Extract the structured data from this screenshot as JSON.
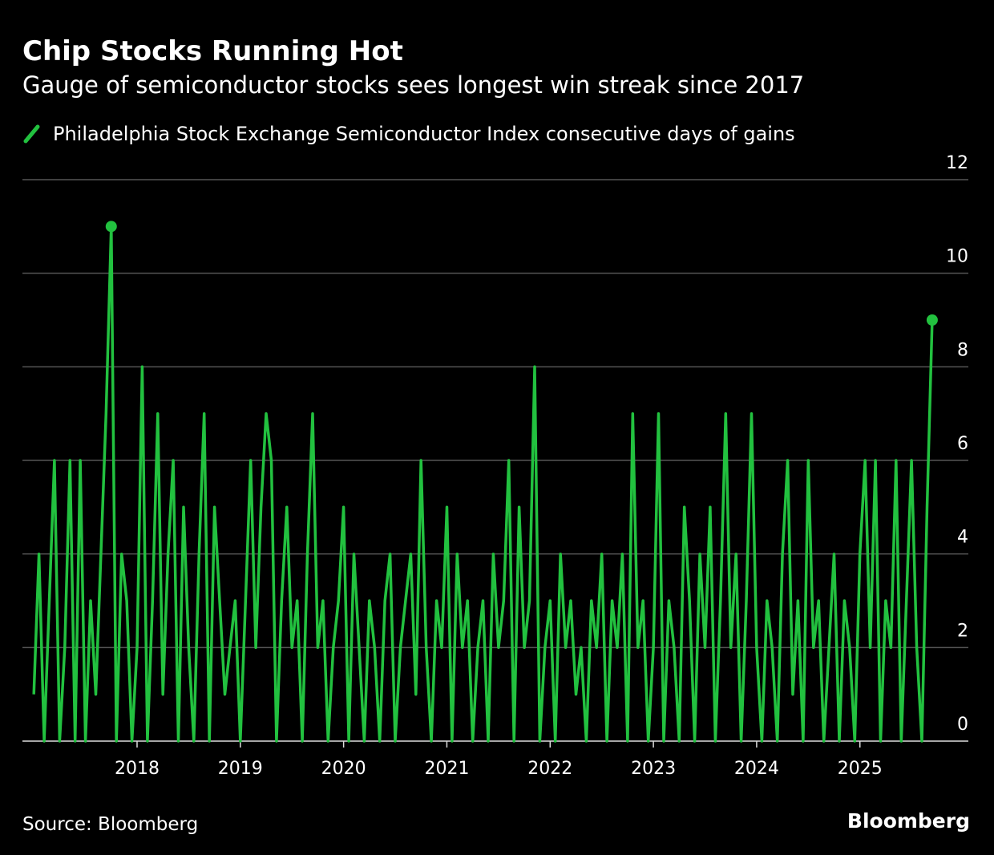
{
  "chart_data": {
    "type": "line",
    "title": "Chip Stocks Running Hot",
    "subtitle": "Gauge of semiconductor stocks sees longest win streak since 2017",
    "source": "Source: Bloomberg",
    "brand": "Bloomberg",
    "x": [
      2017.0,
      2017.05,
      2017.1,
      2017.15,
      2017.2,
      2017.25,
      2017.3,
      2017.35,
      2017.4,
      2017.45,
      2017.5,
      2017.55,
      2017.6,
      2017.65,
      2017.7,
      2017.75,
      2017.8,
      2017.85,
      2017.9,
      2017.95,
      2018.0,
      2018.05,
      2018.1,
      2018.15,
      2018.2,
      2018.25,
      2018.3,
      2018.35,
      2018.4,
      2018.45,
      2018.5,
      2018.55,
      2018.6,
      2018.65,
      2018.7,
      2018.75,
      2018.8,
      2018.85,
      2018.9,
      2018.95,
      2019.0,
      2019.05,
      2019.1,
      2019.15,
      2019.2,
      2019.25,
      2019.3,
      2019.35,
      2019.4,
      2019.45,
      2019.5,
      2019.55,
      2019.6,
      2019.65,
      2019.7,
      2019.75,
      2019.8,
      2019.85,
      2019.9,
      2019.95,
      2020.0,
      2020.05,
      2020.1,
      2020.15,
      2020.2,
      2020.25,
      2020.3,
      2020.35,
      2020.4,
      2020.45,
      2020.5,
      2020.55,
      2020.6,
      2020.65,
      2020.7,
      2020.75,
      2020.8,
      2020.85,
      2020.9,
      2020.95,
      2021.0,
      2021.05,
      2021.1,
      2021.15,
      2021.2,
      2021.25,
      2021.3,
      2021.35,
      2021.4,
      2021.45,
      2021.5,
      2021.55,
      2021.6,
      2021.65,
      2021.7,
      2021.75,
      2021.8,
      2021.85,
      2021.9,
      2021.95,
      2022.0,
      2022.05,
      2022.1,
      2022.15,
      2022.2,
      2022.25,
      2022.3,
      2022.35,
      2022.4,
      2022.45,
      2022.5,
      2022.55,
      2022.6,
      2022.65,
      2022.7,
      2022.75,
      2022.8,
      2022.85,
      2022.9,
      2022.95,
      2023.0,
      2023.05,
      2023.1,
      2023.15,
      2023.2,
      2023.25,
      2023.3,
      2023.35,
      2023.4,
      2023.45,
      2023.5,
      2023.55,
      2023.6,
      2023.65,
      2023.7,
      2023.75,
      2023.8,
      2023.85,
      2023.9,
      2023.95,
      2024.0,
      2024.05,
      2024.1,
      2024.15,
      2024.2,
      2024.25,
      2024.3,
      2024.35,
      2024.4,
      2024.45,
      2024.5,
      2024.55,
      2024.6,
      2024.65,
      2024.7,
      2024.75,
      2024.8,
      2024.85,
      2024.9,
      2024.95,
      2025.0,
      2025.05,
      2025.1,
      2025.15,
      2025.2,
      2025.25,
      2025.3,
      2025.35,
      2025.4,
      2025.45,
      2025.5,
      2025.55,
      2025.6,
      2025.65,
      2025.7
    ],
    "series": [
      {
        "name": "Philadelphia Stock Exchange Semiconductor Index consecutive days of gains",
        "color": "#22c13f",
        "values": [
          1,
          4,
          0,
          3,
          6,
          0,
          2,
          6,
          0,
          6,
          0,
          3,
          1,
          4,
          7,
          11,
          0,
          4,
          3,
          0,
          2,
          8,
          0,
          3,
          7,
          1,
          4,
          6,
          0,
          5,
          2,
          0,
          4,
          7,
          0,
          5,
          3,
          1,
          2,
          3,
          0,
          3,
          6,
          2,
          5,
          7,
          6,
          0,
          3,
          5,
          2,
          3,
          0,
          4,
          7,
          2,
          3,
          0,
          2,
          3,
          5,
          0,
          4,
          2,
          0,
          3,
          2,
          0,
          3,
          4,
          0,
          2,
          3,
          4,
          1,
          6,
          2,
          0,
          3,
          2,
          5,
          0,
          4,
          2,
          3,
          0,
          2,
          3,
          0,
          4,
          2,
          3,
          6,
          0,
          5,
          2,
          3,
          8,
          0,
          2,
          3,
          0,
          4,
          2,
          3,
          1,
          2,
          0,
          3,
          2,
          4,
          0,
          3,
          2,
          4,
          0,
          7,
          2,
          3,
          0,
          2,
          7,
          0,
          3,
          2,
          0,
          5,
          3,
          0,
          4,
          2,
          5,
          0,
          3,
          7,
          2,
          4,
          0,
          3,
          7,
          2,
          0,
          3,
          2,
          0,
          4,
          6,
          1,
          3,
          0,
          6,
          2,
          3,
          0,
          2,
          4,
          0,
          3,
          2,
          0,
          4,
          6,
          2,
          6,
          0,
          3,
          2,
          6,
          0,
          3,
          6,
          2,
          0,
          5,
          9
        ]
      }
    ],
    "xlim": [
      2016.89,
      2026.05
    ],
    "xticks": [
      2018,
      2019,
      2020,
      2021,
      2022,
      2023,
      2024,
      2025
    ],
    "ylim": [
      0,
      12
    ],
    "yticks": [
      0,
      2,
      4,
      6,
      8,
      10,
      12
    ],
    "grid": true
  }
}
